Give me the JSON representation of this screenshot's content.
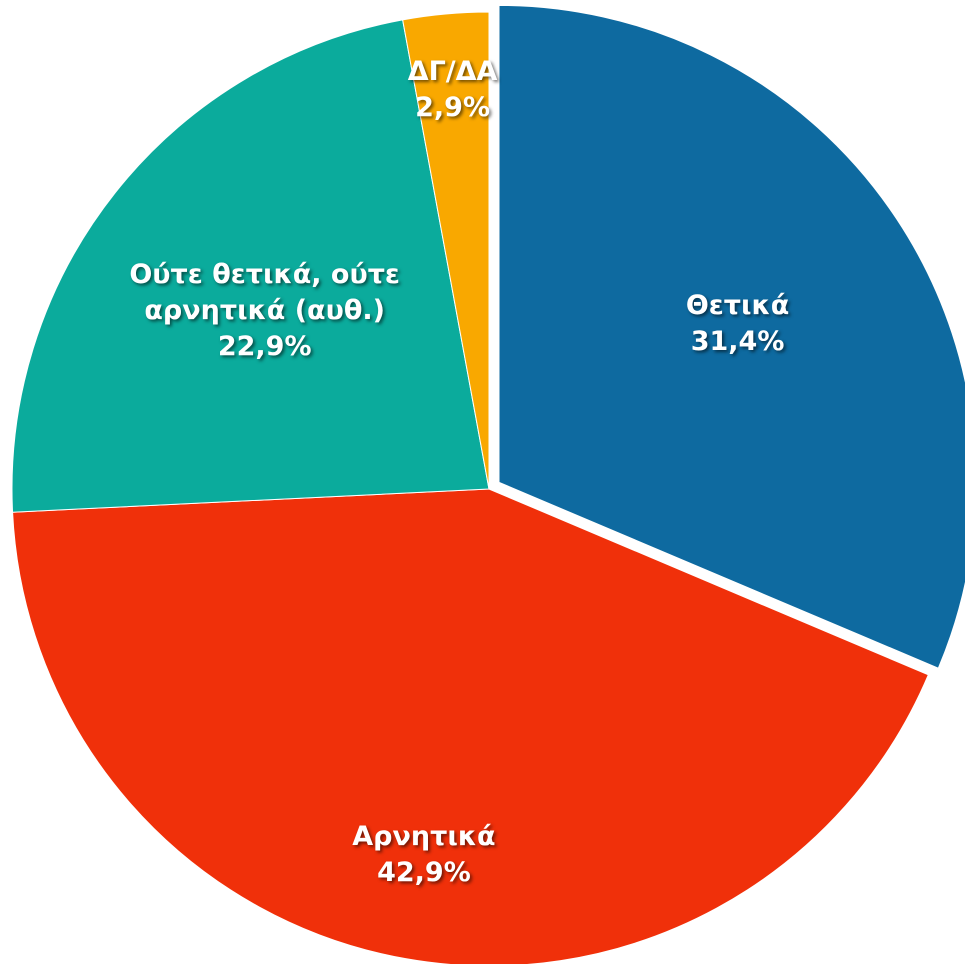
{
  "chart_data": {
    "type": "pie",
    "categories": [
      "Θετικά",
      "Αρνητικά",
      "Ούτε θετικά, ούτε αρνητικά (αυθ.)",
      "ΔΓ/ΔΑ"
    ],
    "values": [
      31.4,
      42.9,
      22.9,
      2.9
    ],
    "value_labels": [
      "31,4%",
      "42,9%",
      "22,9%",
      "2,9%"
    ],
    "colors": [
      "#0e6aa0",
      "#f0300a",
      "#0bab9c",
      "#f9a800"
    ],
    "exploded": [
      true,
      false,
      false,
      false
    ]
  }
}
